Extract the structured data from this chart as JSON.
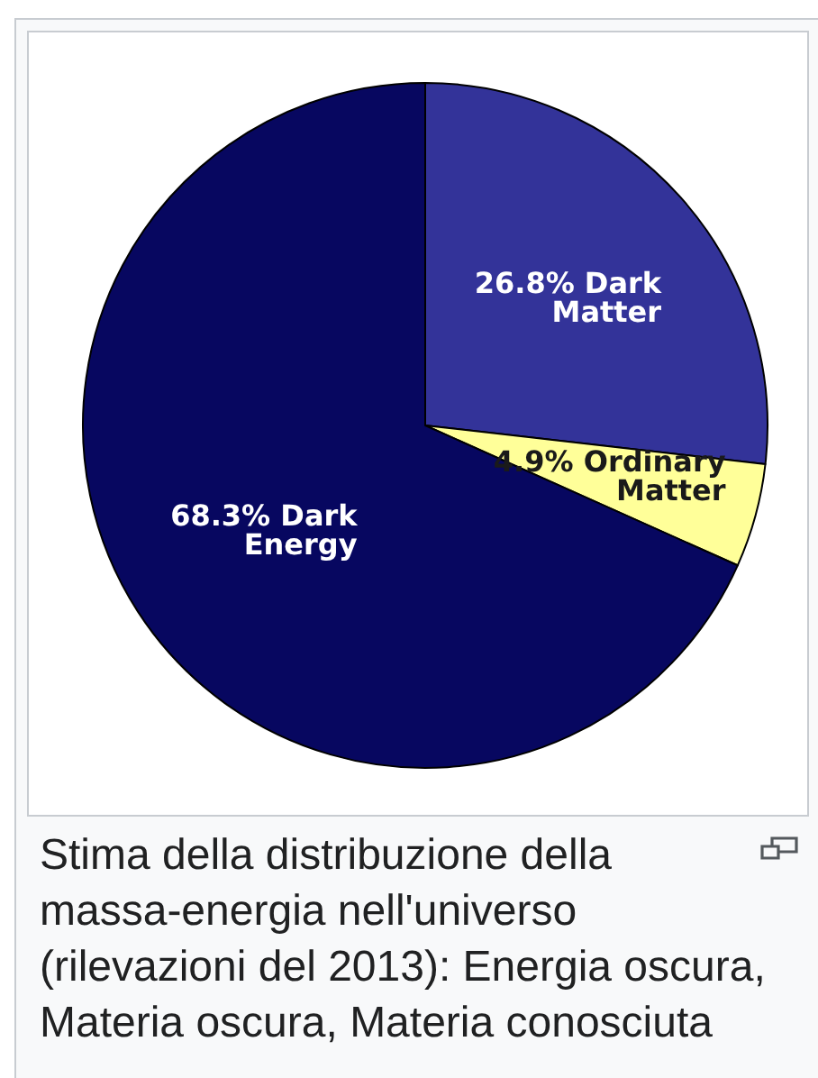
{
  "chart_data": {
    "type": "pie",
    "categories": [
      "Dark Matter",
      "Ordinary Matter",
      "Dark Energy"
    ],
    "values": [
      26.8,
      4.9,
      68.3
    ],
    "colors": [
      "#333399",
      "#ffff99",
      "#070760"
    ],
    "value_labels": [
      "26.8%",
      "4.9%",
      "68.3%"
    ],
    "annotations": [
      "Stima della distribuzione della",
      "massa-energia nell'universo",
      "(rilevazioni del 2013): Energia oscura,",
      "Materia oscura, Materia conosciuta"
    ]
  }
}
